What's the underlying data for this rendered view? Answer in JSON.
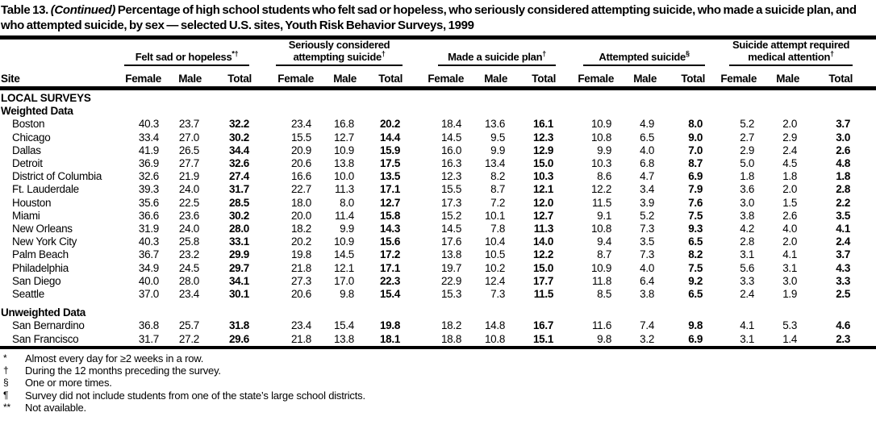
{
  "title": {
    "prefix": "Table 13.",
    "continued": "(Continued)",
    "rest": "Percentage of high school students who felt sad or hopeless, who seriously considered attempting suicide, who made a suicide plan, and who attempted suicide, by sex — selected U.S. sites, Youth Risk Behavior Surveys, 1999"
  },
  "table": {
    "site_header": "Site",
    "sub_headers": [
      "Female",
      "Male",
      "Total"
    ],
    "groups": [
      {
        "label": "Felt sad or hopeless",
        "sup": "*†"
      },
      {
        "label": "Seriously considered attempting suicide",
        "sup": "†"
      },
      {
        "label": "Made a suicide plan",
        "sup": "†"
      },
      {
        "label": "Attempted suicide",
        "sup": "§"
      },
      {
        "label": "Suicide attempt required medical attention",
        "sup": "†"
      }
    ],
    "sections": [
      {
        "heading": "LOCAL SURVEYS",
        "subheading": "Weighted Data",
        "rows": [
          {
            "site": "Boston",
            "values": [
              "40.3",
              "23.7",
              "32.2",
              "23.4",
              "16.8",
              "20.2",
              "18.4",
              "13.6",
              "16.1",
              "10.9",
              "4.9",
              "8.0",
              "5.2",
              "2.0",
              "3.7"
            ]
          },
          {
            "site": "Chicago",
            "values": [
              "33.4",
              "27.0",
              "30.2",
              "15.5",
              "12.7",
              "14.4",
              "14.5",
              "9.5",
              "12.3",
              "10.8",
              "6.5",
              "9.0",
              "2.7",
              "2.9",
              "3.0"
            ]
          },
          {
            "site": "Dallas",
            "values": [
              "41.9",
              "26.5",
              "34.4",
              "20.9",
              "10.9",
              "15.9",
              "16.0",
              "9.9",
              "12.9",
              "9.9",
              "4.0",
              "7.0",
              "2.9",
              "2.4",
              "2.6"
            ]
          },
          {
            "site": "Detroit",
            "values": [
              "36.9",
              "27.7",
              "32.6",
              "20.6",
              "13.8",
              "17.5",
              "16.3",
              "13.4",
              "15.0",
              "10.3",
              "6.8",
              "8.7",
              "5.0",
              "4.5",
              "4.8"
            ]
          },
          {
            "site": "District of Columbia",
            "values": [
              "32.6",
              "21.9",
              "27.4",
              "16.6",
              "10.0",
              "13.5",
              "12.3",
              "8.2",
              "10.3",
              "8.6",
              "4.7",
              "6.9",
              "1.8",
              "1.8",
              "1.8"
            ]
          },
          {
            "site": "Ft. Lauderdale",
            "values": [
              "39.3",
              "24.0",
              "31.7",
              "22.7",
              "11.3",
              "17.1",
              "15.5",
              "8.7",
              "12.1",
              "12.2",
              "3.4",
              "7.9",
              "3.6",
              "2.0",
              "2.8"
            ]
          },
          {
            "site": "Houston",
            "values": [
              "35.6",
              "22.5",
              "28.5",
              "18.0",
              "8.0",
              "12.7",
              "17.3",
              "7.2",
              "12.0",
              "11.5",
              "3.9",
              "7.6",
              "3.0",
              "1.5",
              "2.2"
            ]
          },
          {
            "site": "Miami",
            "values": [
              "36.6",
              "23.6",
              "30.2",
              "20.0",
              "11.4",
              "15.8",
              "15.2",
              "10.1",
              "12.7",
              "9.1",
              "5.2",
              "7.5",
              "3.8",
              "2.6",
              "3.5"
            ]
          },
          {
            "site": "New Orleans",
            "values": [
              "31.9",
              "24.0",
              "28.0",
              "18.2",
              "9.9",
              "14.3",
              "14.5",
              "7.8",
              "11.3",
              "10.8",
              "7.3",
              "9.3",
              "4.2",
              "4.0",
              "4.1"
            ]
          },
          {
            "site": "New York City",
            "values": [
              "40.3",
              "25.8",
              "33.1",
              "20.2",
              "10.9",
              "15.6",
              "17.6",
              "10.4",
              "14.0",
              "9.4",
              "3.5",
              "6.5",
              "2.8",
              "2.0",
              "2.4"
            ]
          },
          {
            "site": "Palm Beach",
            "values": [
              "36.7",
              "23.2",
              "29.9",
              "19.8",
              "14.5",
              "17.2",
              "13.8",
              "10.5",
              "12.2",
              "8.7",
              "7.3",
              "8.2",
              "3.1",
              "4.1",
              "3.7"
            ]
          },
          {
            "site": "Philadelphia",
            "values": [
              "34.9",
              "24.5",
              "29.7",
              "21.8",
              "12.1",
              "17.1",
              "19.7",
              "10.2",
              "15.0",
              "10.9",
              "4.0",
              "7.5",
              "5.6",
              "3.1",
              "4.3"
            ]
          },
          {
            "site": "San Diego",
            "values": [
              "40.0",
              "28.0",
              "34.1",
              "27.3",
              "17.0",
              "22.3",
              "22.9",
              "12.4",
              "17.7",
              "11.8",
              "6.4",
              "9.2",
              "3.3",
              "3.0",
              "3.3"
            ]
          },
          {
            "site": "Seattle",
            "values": [
              "37.0",
              "23.4",
              "30.1",
              "20.6",
              "9.8",
              "15.4",
              "15.3",
              "7.3",
              "11.5",
              "8.5",
              "3.8",
              "6.5",
              "2.4",
              "1.9",
              "2.5"
            ]
          }
        ]
      },
      {
        "subheading": "Unweighted Data",
        "rows": [
          {
            "site": "San Bernardino",
            "values": [
              "36.8",
              "25.7",
              "31.8",
              "23.4",
              "15.4",
              "19.8",
              "18.2",
              "14.8",
              "16.7",
              "11.6",
              "7.4",
              "9.8",
              "4.1",
              "5.3",
              "4.6"
            ]
          },
          {
            "site": "San Francisco",
            "values": [
              "31.7",
              "27.2",
              "29.6",
              "21.8",
              "13.8",
              "18.1",
              "18.8",
              "10.8",
              "15.1",
              "9.8",
              "3.2",
              "6.9",
              "3.1",
              "1.4",
              "2.3"
            ]
          }
        ]
      }
    ]
  },
  "footnotes": [
    {
      "symbol": "*",
      "text": "Almost every day for ≥2 weeks in a row."
    },
    {
      "symbol": "†",
      "text": "During the 12 months preceding the survey."
    },
    {
      "symbol": "§",
      "text": "One or more times."
    },
    {
      "symbol": "¶",
      "text": "Survey did not include students from one of the state’s large school districts."
    },
    {
      "symbol": "**",
      "text": "Not available."
    }
  ]
}
